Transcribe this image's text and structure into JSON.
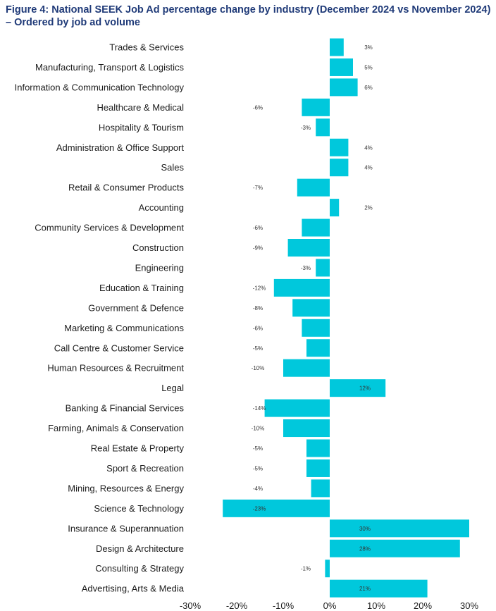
{
  "title": "Figure 4: National SEEK Job Ad percentage change by industry (December 2024 vs November 2024)",
  "subtitle": "– Ordered by job ad volume",
  "colors": {
    "bar": "#00c8dc",
    "text": "#1c1c1c",
    "title": "#1f3a78"
  },
  "chart_data": {
    "type": "bar",
    "orientation": "horizontal",
    "title": "Figure 4: National SEEK Job Ad percentage change by industry (December 2024 vs November 2024) – Ordered by job ad volume",
    "xlabel": "",
    "ylabel": "",
    "xlim": [
      -30,
      30
    ],
    "xticks": [
      "-30%",
      "-20%",
      "-10%",
      "0%",
      "10%",
      "20%",
      "30%"
    ],
    "categories": [
      "Trades & Services",
      "Manufacturing, Transport & Logistics",
      "Information & Communication Technology",
      "Healthcare & Medical",
      "Hospitality & Tourism",
      "Administration & Office Support",
      "Sales",
      "Retail & Consumer Products",
      "Accounting",
      "Community Services & Development",
      "Construction",
      "Engineering",
      "Education & Training",
      "Government & Defence",
      "Marketing & Communications",
      "Call Centre & Customer Service",
      "Human Resources & Recruitment",
      "Legal",
      "Banking & Financial Services",
      "Farming, Animals & Conservation",
      "Real Estate & Property",
      "Sport & Recreation",
      "Mining, Resources & Energy",
      "Science & Technology",
      "Insurance & Superannuation",
      "Design & Architecture",
      "Consulting & Strategy",
      "Advertising, Arts & Media"
    ],
    "values": [
      3,
      5,
      6,
      -6,
      -3,
      4,
      4,
      -7,
      2,
      -6,
      -9,
      -3,
      -12,
      -8,
      -6,
      -5,
      -10,
      12,
      -14,
      -10,
      -5,
      -5,
      -4,
      -23,
      30,
      28,
      -1,
      21
    ],
    "value_labels": [
      "3%",
      "5%",
      "6%",
      "-6%",
      "-3%",
      "4%",
      "4%",
      "-7%",
      "2%",
      "-6%",
      "-9%",
      "-3%",
      "-12%",
      "-8%",
      "-6%",
      "-5%",
      "-10%",
      "12%",
      "-14%",
      "-10%",
      "-5%",
      "-5%",
      "-4%",
      "-23%",
      "30%",
      "28%",
      "-1%",
      "21%"
    ]
  }
}
